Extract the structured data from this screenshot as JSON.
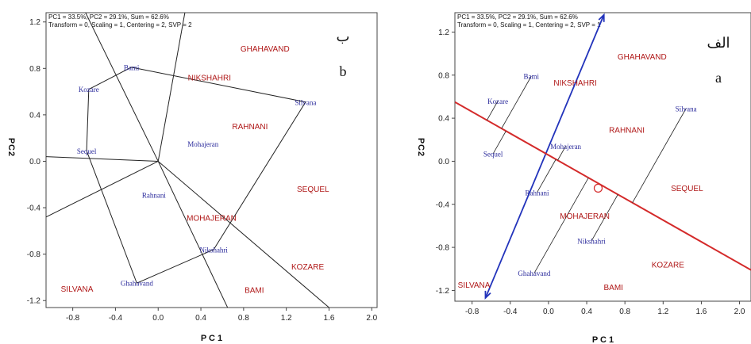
{
  "colors": {
    "entry": "#2b2b9c",
    "tester": "#b01818",
    "polygon": "#222222",
    "aec_axis": "#d42a2a",
    "aec_ordinate": "#2233bb",
    "projection": "#222222"
  },
  "chart_data": [
    {
      "type": "scatter",
      "title": "",
      "info_line1": "PC1 = 33.5%, PC2 = 29.1%, Sum = 62.6%",
      "info_line2": "Transform = 0, Scaling = 1, Centering = 2, SVP = 2",
      "xlabel": "P C 1",
      "ylabel": "P C 2",
      "tag_native": "ب",
      "tag_latin": "b",
      "xlim": [
        -1.05,
        2.05
      ],
      "ylim": [
        -1.26,
        1.28
      ],
      "xticks": [
        "-0.8",
        "-0.4",
        "0.0",
        "0.4",
        "0.8",
        "1.2",
        "1.6",
        "2.0"
      ],
      "xtick_values": [
        -0.8,
        -0.4,
        0.0,
        0.4,
        0.8,
        1.2,
        1.6,
        2.0
      ],
      "yticks": [
        "1.2",
        "0.8",
        "0.4",
        "0.0",
        "-0.4",
        "-0.8",
        "-1.2"
      ],
      "ytick_values": [
        1.2,
        0.8,
        0.4,
        0.0,
        -0.4,
        -0.8,
        -1.2
      ],
      "series": [
        {
          "name": "",
          "role": "entry",
          "points": [
            {
              "label": "Bami",
              "x": -0.25,
              "y": 0.81
            },
            {
              "label": "Kozare",
              "x": -0.65,
              "y": 0.62
            },
            {
              "label": "Sequel",
              "x": -0.67,
              "y": 0.09
            },
            {
              "label": "Mohajeran",
              "x": 0.42,
              "y": 0.15
            },
            {
              "label": "Rahnani",
              "x": -0.04,
              "y": -0.29
            },
            {
              "label": "Nikshahri",
              "x": 0.52,
              "y": -0.76
            },
            {
              "label": "Ghahavand",
              "x": -0.2,
              "y": -1.05
            },
            {
              "label": "Silvana",
              "x": 1.38,
              "y": 0.51
            }
          ]
        },
        {
          "name": "",
          "role": "tester",
          "points": [
            {
              "label": "GHAHAVAND",
              "x": 1.0,
              "y": 0.97
            },
            {
              "label": "NIKSHAHRI",
              "x": 0.48,
              "y": 0.72
            },
            {
              "label": "RAHNANI",
              "x": 0.86,
              "y": 0.3
            },
            {
              "label": "SEQUEL",
              "x": 1.45,
              "y": -0.24
            },
            {
              "label": "MOHAJERAN",
              "x": 0.5,
              "y": -0.49
            },
            {
              "label": "KOZARE",
              "x": 1.4,
              "y": -0.91
            },
            {
              "label": "BAMI",
              "x": 0.9,
              "y": -1.11
            },
            {
              "label": "SILVANA",
              "x": -0.76,
              "y": -1.1
            }
          ]
        }
      ],
      "polygon": [
        "Bami",
        "Silvana",
        "Nikshahri",
        "Ghahavand",
        "Sequel",
        "Kozare"
      ],
      "sector_rays": [
        {
          "x": 0.25,
          "y": 1.28
        },
        {
          "x": -0.68,
          "y": 1.28
        },
        {
          "x": -1.05,
          "y": 0.04
        },
        {
          "x": -1.05,
          "y": -0.48
        },
        {
          "x": 0.65,
          "y": -1.26
        },
        {
          "x": 1.6,
          "y": -1.26
        }
      ]
    },
    {
      "type": "scatter",
      "title": "",
      "info_line1": "PC1 = 33.5%, PC2 = 29.1%, Sum = 62.6%",
      "info_line2": "Transform = 0, Scaling = 1, Centering = 2, SVP = 1",
      "xlabel": "P C 1",
      "ylabel": "P C 2",
      "tag_native": "الف",
      "tag_latin": "a",
      "xlim": [
        -0.98,
        2.12
      ],
      "ylim": [
        -1.3,
        1.38
      ],
      "xticks": [
        "-0.8",
        "-0.4",
        "0.0",
        "0.4",
        "0.8",
        "1.2",
        "1.6",
        "2.0"
      ],
      "xtick_values": [
        -0.8,
        -0.4,
        0.0,
        0.4,
        0.8,
        1.2,
        1.6,
        2.0
      ],
      "yticks": [
        "1.2",
        "0.8",
        "0.4",
        "0.0",
        "-0.4",
        "-0.8",
        "-1.2"
      ],
      "ytick_values": [
        1.2,
        0.8,
        0.4,
        0.0,
        -0.4,
        -0.8,
        -1.2
      ],
      "series": [
        {
          "name": "",
          "role": "entry",
          "points": [
            {
              "label": "Bami",
              "x": -0.18,
              "y": 0.79
            },
            {
              "label": "Kozare",
              "x": -0.53,
              "y": 0.56
            },
            {
              "label": "Sequel",
              "x": -0.58,
              "y": 0.07
            },
            {
              "label": "Mohajeran",
              "x": 0.18,
              "y": 0.14
            },
            {
              "label": "Rahnani",
              "x": -0.12,
              "y": -0.29
            },
            {
              "label": "Nikshahri",
              "x": 0.45,
              "y": -0.74
            },
            {
              "label": "Ghahavand",
              "x": -0.15,
              "y": -1.04
            },
            {
              "label": "Silvana",
              "x": 1.44,
              "y": 0.49
            }
          ]
        },
        {
          "name": "",
          "role": "tester",
          "points": [
            {
              "label": "GHAHAVAND",
              "x": 0.98,
              "y": 0.97
            },
            {
              "label": "NIKSHAHRI",
              "x": 0.28,
              "y": 0.73
            },
            {
              "label": "RAHNANI",
              "x": 0.82,
              "y": 0.29
            },
            {
              "label": "SEQUEL",
              "x": 1.45,
              "y": -0.25
            },
            {
              "label": "MOHAJERAN",
              "x": 0.38,
              "y": -0.51
            },
            {
              "label": "KOZARE",
              "x": 1.25,
              "y": -0.96
            },
            {
              "label": "BAMI",
              "x": 0.68,
              "y": -1.17
            },
            {
              "label": "SILVANA",
              "x": -0.78,
              "y": -1.15
            }
          ]
        }
      ],
      "aec_axis": {
        "x1": -0.98,
        "y1": 0.55,
        "x2": 2.12,
        "y2": -1.01
      },
      "aec_ordinate": {
        "x1": -0.66,
        "y1": -1.27,
        "x2": 0.58,
        "y2": 1.36
      },
      "mean_marker": {
        "x": 0.52,
        "y": -0.25
      },
      "projections": [
        {
          "label": "Bami",
          "x": -0.18,
          "y": 0.79
        },
        {
          "label": "Kozare",
          "x": -0.53,
          "y": 0.56
        },
        {
          "label": "Sequel",
          "x": -0.58,
          "y": 0.07
        },
        {
          "label": "Mohajeran",
          "x": 0.18,
          "y": 0.14
        },
        {
          "label": "Rahnani",
          "x": -0.12,
          "y": -0.29
        },
        {
          "label": "Nikshahri",
          "x": 0.45,
          "y": -0.74
        },
        {
          "label": "Ghahavand",
          "x": -0.15,
          "y": -1.04
        },
        {
          "label": "Silvana",
          "x": 1.44,
          "y": 0.49
        }
      ]
    }
  ]
}
